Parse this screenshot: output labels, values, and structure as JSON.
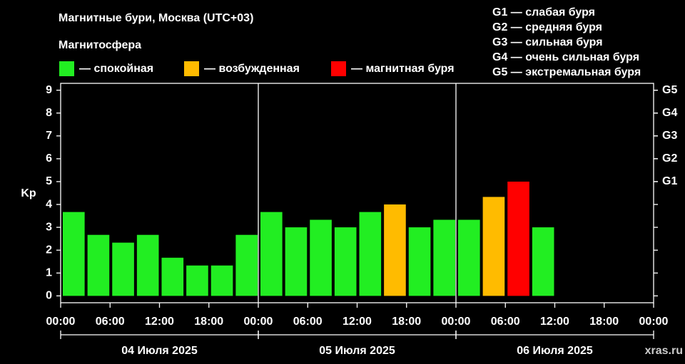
{
  "chart_data": {
    "type": "bar",
    "title": "Магнитные бури, Москва (UTC+03)",
    "legend_title": "Магнитосфера",
    "legend": [
      {
        "label": "— спокойная",
        "color": "#22ee22"
      },
      {
        "label": "— возбужденная",
        "color": "#ffbb00"
      },
      {
        "label": "— магнитная буря",
        "color": "#ff0000"
      }
    ],
    "g_scale": [
      "G1 — слабая буря",
      "G2 — средняя буря",
      "G3 — сильная буря",
      "G4 — очень сильная буря",
      "G5 — экстремальная буря"
    ],
    "y_label": "Kp",
    "watermark": "xras.ru",
    "x": [
      0,
      3,
      6,
      9,
      12,
      15,
      18,
      21,
      24,
      27,
      30,
      33,
      36,
      39,
      42,
      45,
      48,
      51,
      54,
      57,
      60,
      63,
      66,
      69
    ],
    "bar_width": 3,
    "series": [
      {
        "name": "Kp",
        "values": [
          3.67,
          2.67,
          2.33,
          2.67,
          1.67,
          1.33,
          1.33,
          2.67,
          3.67,
          3,
          3.33,
          3,
          3.67,
          4,
          3,
          3.33,
          3.33,
          4.33,
          5,
          3,
          null,
          null,
          null,
          null
        ],
        "colors": [
          "#22ee22",
          "#22ee22",
          "#22ee22",
          "#22ee22",
          "#22ee22",
          "#22ee22",
          "#22ee22",
          "#22ee22",
          "#22ee22",
          "#22ee22",
          "#22ee22",
          "#22ee22",
          "#22ee22",
          "#ffbb00",
          "#22ee22",
          "#22ee22",
          "#22ee22",
          "#ffbb00",
          "#ff0000",
          "#22ee22",
          null,
          null,
          null,
          null
        ]
      }
    ],
    "xlim": [
      0,
      72
    ],
    "xticks": [
      {
        "value": 0,
        "label": "00:00"
      },
      {
        "value": 6,
        "label": "06:00"
      },
      {
        "value": 12,
        "label": "12:00"
      },
      {
        "value": 18,
        "label": "18:00"
      },
      {
        "value": 24,
        "label": "00:00"
      },
      {
        "value": 30,
        "label": "06:00"
      },
      {
        "value": 36,
        "label": "12:00"
      },
      {
        "value": 42,
        "label": "18:00"
      },
      {
        "value": 48,
        "label": "00:00"
      },
      {
        "value": 54,
        "label": "06:00"
      },
      {
        "value": 60,
        "label": "12:00"
      },
      {
        "value": 66,
        "label": "18:00"
      },
      {
        "value": 72,
        "label": "00:00"
      }
    ],
    "days": [
      {
        "label": "04 Июля 2025",
        "start": 0,
        "end": 24
      },
      {
        "label": "05 Июля 2025",
        "start": 24,
        "end": 48
      },
      {
        "label": "06 Июля 2025",
        "start": 48,
        "end": 72
      }
    ],
    "ylim": [
      -0.3,
      9.3
    ],
    "yticks": [
      0,
      1,
      2,
      3,
      4,
      5,
      6,
      7,
      8,
      9
    ],
    "y2lim": [
      -0.3,
      9.3
    ],
    "y2ticks": [
      {
        "value": 5,
        "label": "G1"
      },
      {
        "value": 6,
        "label": "G2"
      },
      {
        "value": 7,
        "label": "G3"
      },
      {
        "value": 8,
        "label": "G4"
      },
      {
        "value": 9,
        "label": "G5"
      }
    ],
    "grid": false
  }
}
